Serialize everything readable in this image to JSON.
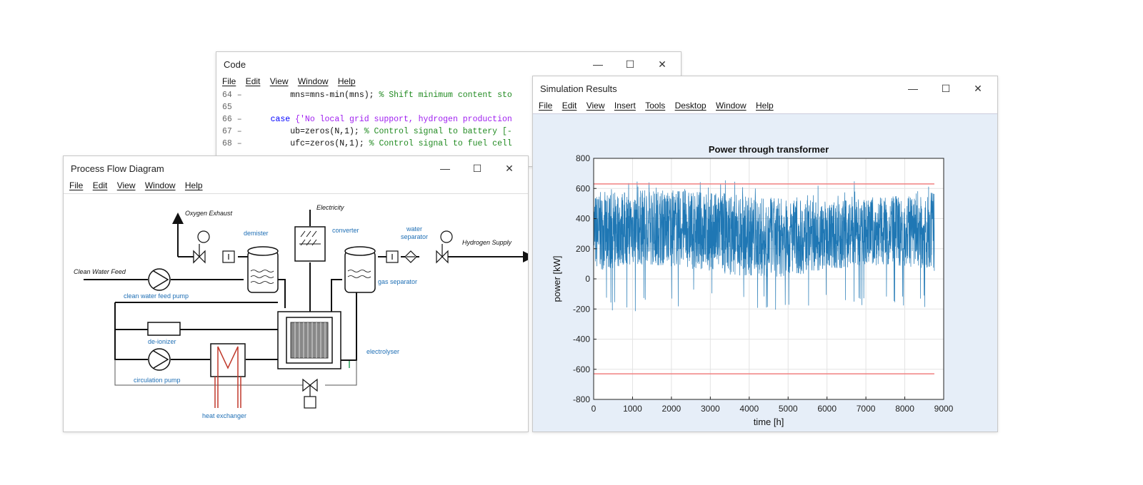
{
  "code_window": {
    "title": "Code",
    "menu": [
      "File",
      "Edit",
      "View",
      "Window",
      "Help"
    ],
    "lines": [
      {
        "num": "64 –",
        "parts": [
          {
            "t": "        mns=mns-min(mns); ",
            "c": "tx"
          },
          {
            "t": "% Shift minimum content sto",
            "c": "cm"
          }
        ]
      },
      {
        "num": "65",
        "parts": []
      },
      {
        "num": "66 –",
        "parts": [
          {
            "t": "    case ",
            "c": "kw"
          },
          {
            "t": "{'No local grid support, hydrogen production",
            "c": "str"
          }
        ]
      },
      {
        "num": "67 –",
        "parts": [
          {
            "t": "        ub=zeros(N,1); ",
            "c": "tx"
          },
          {
            "t": "% Control signal to battery [-",
            "c": "cm"
          }
        ]
      },
      {
        "num": "68 –",
        "parts": [
          {
            "t": "        ufc=zeros(N,1); ",
            "c": "tx"
          },
          {
            "t": "% Control signal to fuel cell",
            "c": "cm"
          }
        ]
      }
    ],
    "controls": {
      "minimize": "—",
      "maximize": "☐",
      "close": "✕"
    }
  },
  "pfd_window": {
    "title": "Process Flow Diagram",
    "menu": [
      "File",
      "Edit",
      "View",
      "Window",
      "Help"
    ],
    "controls": {
      "minimize": "—",
      "maximize": "☐",
      "close": "✕"
    },
    "labels": {
      "oxygen_exhaust": "Oxygen Exhaust",
      "electricity": "Electricity",
      "demister": "demister",
      "converter": "converter",
      "water_separator": "water separator",
      "hydrogen_supply": "Hydrogen Supply",
      "clean_water_feed": "Clean Water Feed",
      "clean_water_feed_pump": "clean water feed pump",
      "gas_separator": "gas separator",
      "de_ionizer": "de-ionizer",
      "electrolyser": "electrolyser",
      "circulation_pump": "circulation pump",
      "heat_exchanger": "heat exchanger"
    }
  },
  "sim_window": {
    "title": "Simulation Results",
    "menu": [
      "File",
      "Edit",
      "View",
      "Insert",
      "Tools",
      "Desktop",
      "Window",
      "Help"
    ],
    "controls": {
      "minimize": "—",
      "maximize": "☐",
      "close": "✕"
    }
  },
  "chart_data": {
    "type": "line",
    "title": "Power through transformer",
    "xlabel": "time [h]",
    "ylabel": "power [kW]",
    "xlim": [
      0,
      9000
    ],
    "ylim": [
      -800,
      800
    ],
    "xticks": [
      0,
      1000,
      2000,
      3000,
      4000,
      5000,
      6000,
      7000,
      8000,
      9000
    ],
    "yticks": [
      -800,
      -600,
      -400,
      -200,
      0,
      200,
      400,
      600,
      800
    ],
    "grid": true,
    "series": [
      {
        "color": "#1f77b4",
        "x_range": [
          0,
          8760
        ],
        "typical_range": [
          50,
          560
        ],
        "min": -220,
        "max": 655
      },
      {
        "color": "#f08080",
        "constant": 630,
        "x_range": [
          0,
          8760
        ]
      },
      {
        "color": "#f08080",
        "constant": -630,
        "x_range": [
          0,
          8760
        ]
      }
    ]
  }
}
